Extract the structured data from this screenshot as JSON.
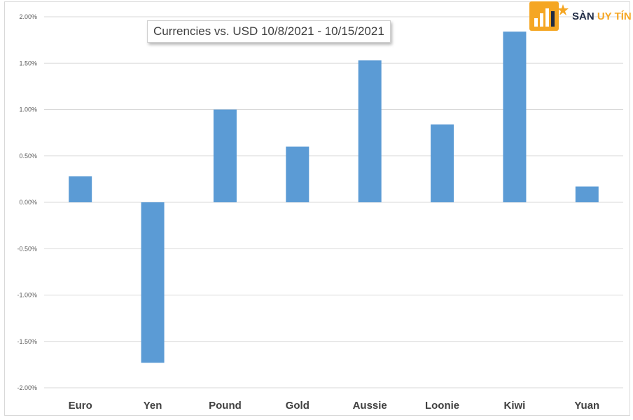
{
  "chart_data": {
    "type": "bar",
    "title": "Currencies vs. USD 10/8/2021 - 10/15/2021",
    "categories": [
      "Euro",
      "Yen",
      "Pound",
      "Gold",
      "Aussie",
      "Loonie",
      "Kiwi",
      "Yuan"
    ],
    "values": [
      0.28,
      -1.73,
      1.0,
      0.6,
      1.53,
      0.84,
      1.84,
      0.17
    ],
    "unit": "%",
    "ylim": [
      -2.0,
      2.0
    ],
    "yticks": [
      "2.00%",
      "1.50%",
      "1.00%",
      "0.50%",
      "0.00%",
      "-0.50%",
      "-1.00%",
      "-1.50%",
      "-2.00%"
    ],
    "ytick_values": [
      2.0,
      1.5,
      1.0,
      0.5,
      0.0,
      -0.5,
      -1.0,
      -1.5,
      -2.0
    ],
    "grid": true,
    "bar_color": "#5b9bd5",
    "grid_color": "#d9d9d9"
  },
  "watermark": {
    "logo_icon": "bar-chart-star-icon",
    "text_part1": "SÀN",
    "text_part2": "UY TÍN",
    "color1": "#1f2a44",
    "color2": "#f5a623"
  }
}
